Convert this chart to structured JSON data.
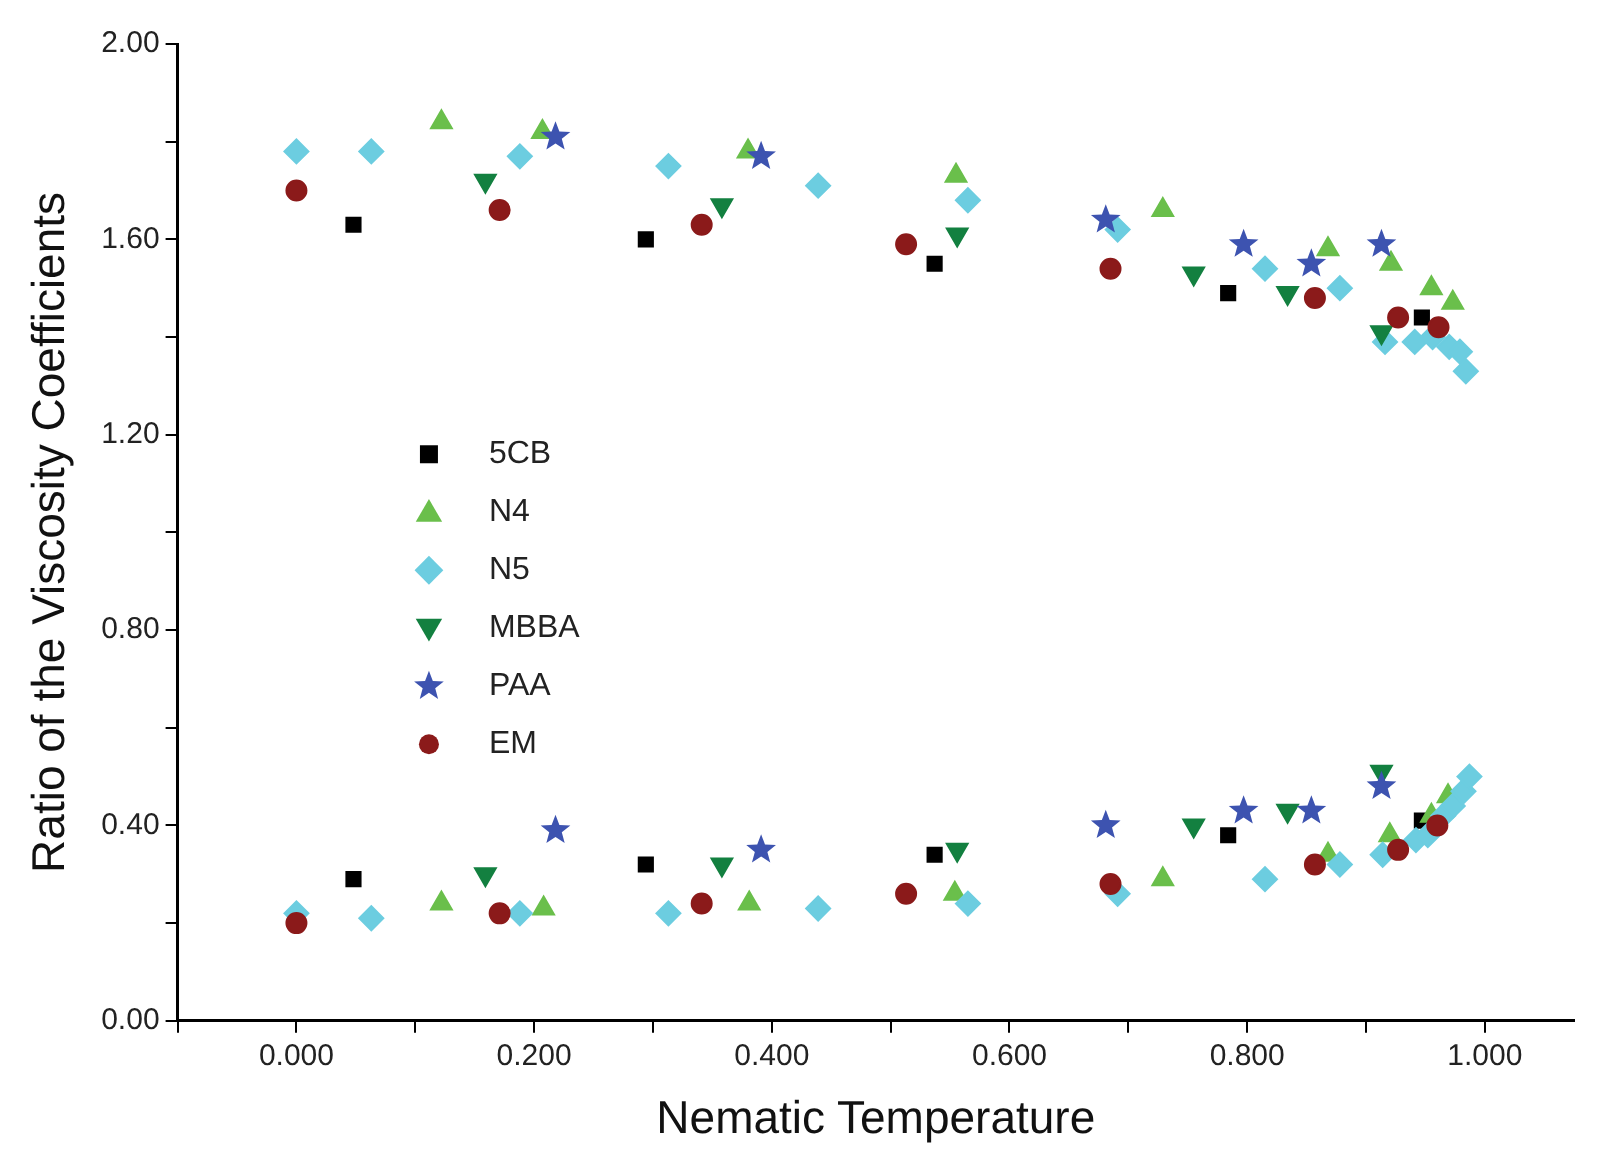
{
  "chart_data": {
    "type": "scatter",
    "xlabel": "Nematic Temperature",
    "ylabel": "Ratio of the Viscosity Coefficients",
    "xlim": [
      -0.1,
      1.075
    ],
    "ylim": [
      0,
      2
    ],
    "xticks": [
      {
        "value": -0.1,
        "label": null
      },
      {
        "value": 0,
        "label": "0.000"
      },
      {
        "value": 0.1,
        "label": null
      },
      {
        "value": 0.2,
        "label": "0.200"
      },
      {
        "value": 0.3,
        "label": null
      },
      {
        "value": 0.4,
        "label": "0.400"
      },
      {
        "value": 0.5,
        "label": null
      },
      {
        "value": 0.6,
        "label": "0.600"
      },
      {
        "value": 0.7,
        "label": null
      },
      {
        "value": 0.8,
        "label": "0.800"
      },
      {
        "value": 0.9,
        "label": null
      },
      {
        "value": 1.0,
        "label": "1.000"
      }
    ],
    "yticks": [
      {
        "value": 0,
        "label": "0.00"
      },
      {
        "value": 0.2,
        "label": null
      },
      {
        "value": 0.4,
        "label": "0.40"
      },
      {
        "value": 0.6,
        "label": null
      },
      {
        "value": 0.8,
        "label": "0.80"
      },
      {
        "value": 1.0,
        "label": null
      },
      {
        "value": 1.2,
        "label": "1.20"
      },
      {
        "value": 1.4,
        "label": null
      },
      {
        "value": 1.6,
        "label": "1.60"
      },
      {
        "value": 1.8,
        "label": null
      },
      {
        "value": 2.0,
        "label": "2.00"
      }
    ],
    "grid": false,
    "legend": "left",
    "series": [
      {
        "name": "5CB",
        "color": "#000000",
        "marker": "square",
        "x": [
          0.048,
          0.294,
          0.537,
          0.784,
          0.947,
          0.048,
          0.294,
          0.537,
          0.784,
          0.947
        ],
        "values": [
          1.63,
          1.6,
          1.55,
          1.49,
          1.44,
          0.29,
          0.32,
          0.34,
          0.38,
          0.41
        ]
      },
      {
        "name": "N4",
        "color": "#6abf4b",
        "marker": "triangle",
        "x": [
          0.122,
          0.207,
          0.38,
          0.555,
          0.729,
          0.868,
          0.921,
          0.955,
          0.973,
          0.122,
          0.208,
          0.381,
          0.554,
          0.729,
          0.868,
          0.92,
          0.955,
          0.969
        ],
        "values": [
          1.84,
          1.82,
          1.78,
          1.73,
          1.66,
          1.58,
          1.55,
          1.5,
          1.47,
          0.24,
          0.23,
          0.24,
          0.26,
          0.29,
          0.34,
          0.38,
          0.42,
          0.46
        ]
      },
      {
        "name": "N5",
        "color": "#6ccde0",
        "marker": "diamond",
        "x": [
          0,
          0.063,
          0.188,
          0.313,
          0.439,
          0.565,
          0.691,
          0.815,
          0.878,
          0.916,
          0.941,
          0.956,
          0.97,
          0.979,
          0.984,
          0,
          0.063,
          0.188,
          0.313,
          0.439,
          0.565,
          0.691,
          0.815,
          0.878,
          0.914,
          0.942,
          0.952,
          0.965,
          0.973,
          0.982,
          0.987
        ],
        "values": [
          1.78,
          1.78,
          1.77,
          1.75,
          1.71,
          1.68,
          1.62,
          1.54,
          1.5,
          1.39,
          1.39,
          1.4,
          1.38,
          1.37,
          1.33,
          0.22,
          0.21,
          0.22,
          0.22,
          0.23,
          0.24,
          0.26,
          0.29,
          0.32,
          0.34,
          0.37,
          0.38,
          0.42,
          0.44,
          0.47,
          0.5
        ]
      },
      {
        "name": "MBBA",
        "color": "#138040",
        "marker": "triangle-down",
        "x": [
          0.159,
          0.358,
          0.556,
          0.755,
          0.834,
          0.913,
          0.159,
          0.358,
          0.556,
          0.755,
          0.834,
          0.913
        ],
        "values": [
          1.72,
          1.67,
          1.61,
          1.53,
          1.49,
          1.41,
          0.3,
          0.32,
          0.35,
          0.4,
          0.43,
          0.51
        ]
      },
      {
        "name": "PAA",
        "color": "#3d53b0",
        "marker": "star",
        "x": [
          0.218,
          0.391,
          0.681,
          0.797,
          0.854,
          0.913,
          0.218,
          0.391,
          0.681,
          0.797,
          0.854,
          0.913
        ],
        "values": [
          1.81,
          1.77,
          1.64,
          1.59,
          1.55,
          1.59,
          0.39,
          0.35,
          0.4,
          0.43,
          0.43,
          0.48
        ]
      },
      {
        "name": "EM",
        "color": "#8b1a1a",
        "marker": "circle",
        "x": [
          0,
          0.171,
          0.341,
          0.513,
          0.685,
          0.857,
          0.927,
          0.961,
          0,
          0.171,
          0.341,
          0.513,
          0.685,
          0.857,
          0.927,
          0.96
        ],
        "values": [
          1.7,
          1.66,
          1.63,
          1.59,
          1.54,
          1.48,
          1.44,
          1.42,
          0.2,
          0.22,
          0.24,
          0.26,
          0.28,
          0.32,
          0.35,
          0.4
        ]
      }
    ]
  }
}
